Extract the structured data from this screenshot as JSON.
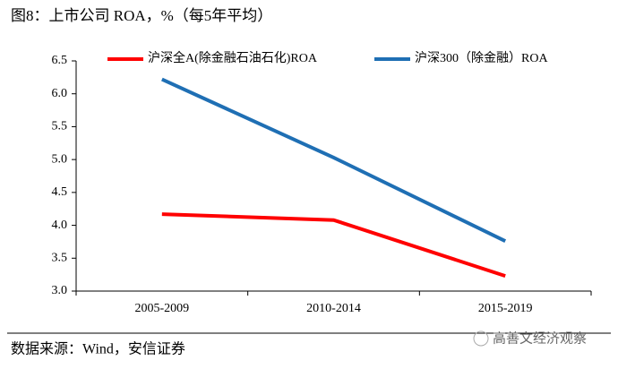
{
  "chart_data": {
    "type": "line",
    "title": "图8：上市公司 ROA，%（每5年平均）",
    "categories": [
      "2005-2009",
      "2010-2014",
      "2015-2019"
    ],
    "series": [
      {
        "name": "沪深全A(除金融石油石化)ROA",
        "color": "#ff0000",
        "values": [
          4.17,
          4.08,
          3.23
        ]
      },
      {
        "name": "沪深300（除金融）ROA",
        "color": "#1f6fb4",
        "values": [
          6.22,
          5.03,
          3.76
        ]
      }
    ],
    "ylim": [
      3.0,
      6.5
    ],
    "yticks": [
      {
        "value": 3.0,
        "label": "3.0"
      },
      3.5,
      {
        "value": 4.0,
        "label": "4.0"
      },
      4.5,
      {
        "value": 5.0,
        "label": "5.0"
      },
      5.5,
      {
        "value": 6.0,
        "label": "6.0"
      },
      6.5
    ],
    "grid": false,
    "legend": "top"
  },
  "source": "数据来源：Wind，安信证券",
  "watermark": "高善文经济观察"
}
